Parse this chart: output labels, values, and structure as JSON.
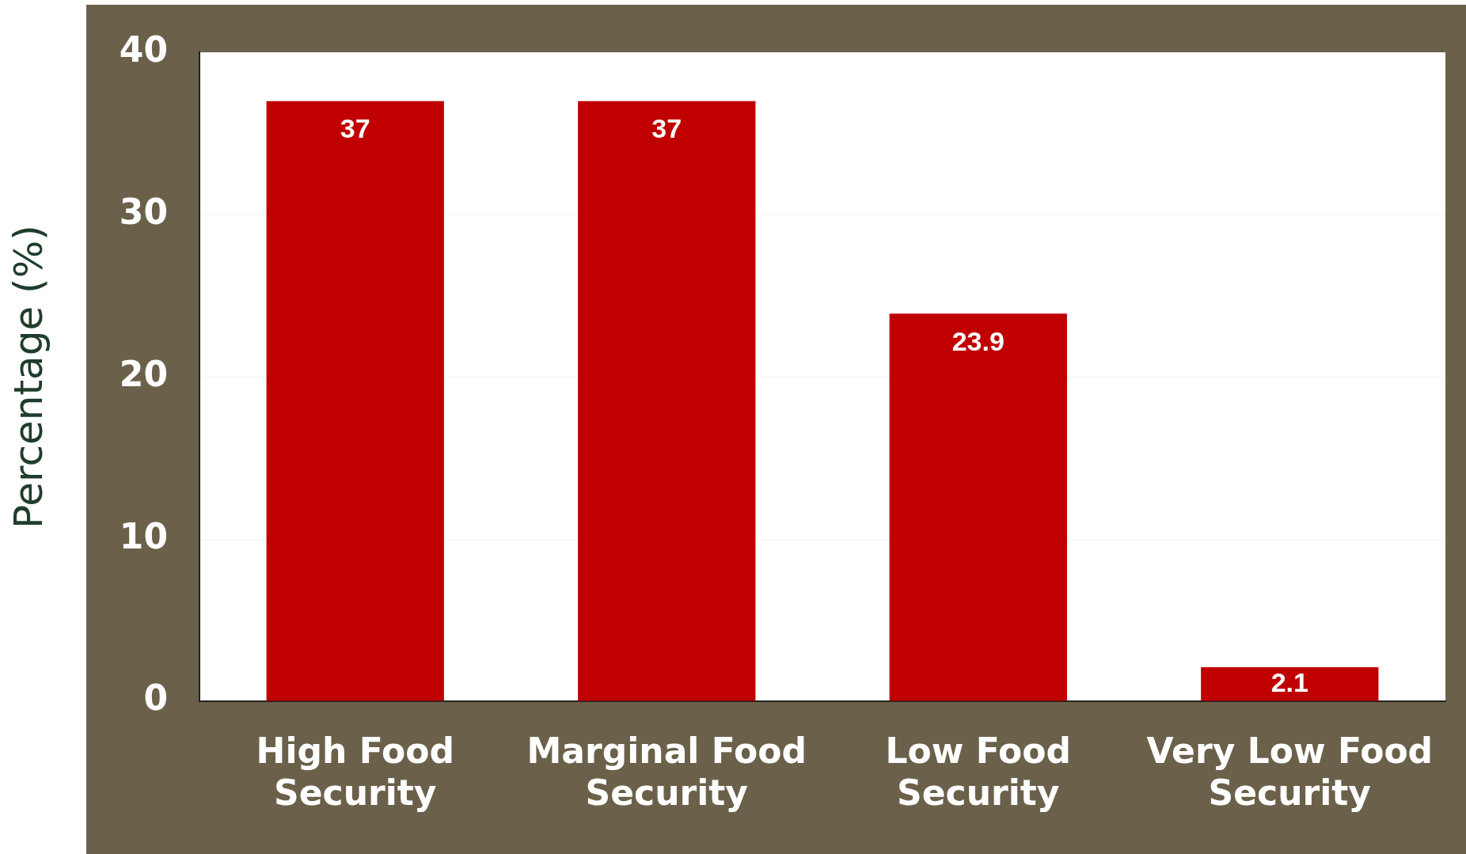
{
  "chart_data": {
    "type": "bar",
    "ylabel": "Percentage (%)",
    "categories": [
      "High Food Security",
      "Marginal Food Security",
      "Low Food Security",
      "Very Low Food Security"
    ],
    "values": [
      37,
      37,
      23.9,
      2.1
    ],
    "color": "#c00000",
    "ylim": [
      0,
      40
    ],
    "yticks": [
      0,
      10,
      20,
      30,
      40
    ],
    "grid": "y",
    "data_labels": true
  }
}
